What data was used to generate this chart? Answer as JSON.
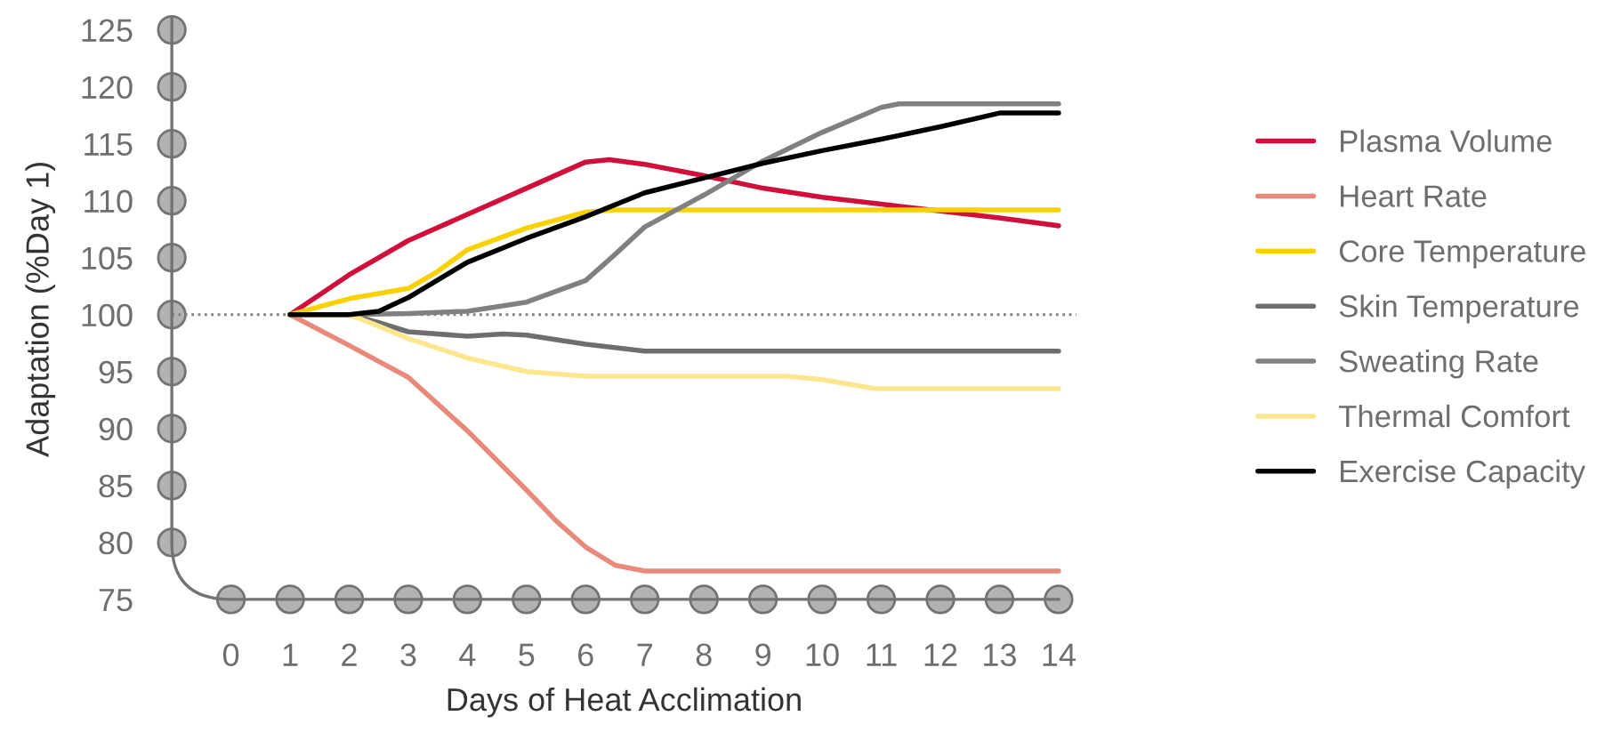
{
  "chart_data": {
    "type": "line",
    "xlabel": "Days of Heat Acclimation",
    "ylabel": "Adaptation (%Day 1)",
    "xlim": [
      -1,
      14.3
    ],
    "ylim": [
      75,
      126
    ],
    "xticks": [
      0,
      1,
      2,
      3,
      4,
      5,
      6,
      7,
      8,
      9,
      10,
      11,
      12,
      13,
      14
    ],
    "yticks": [
      75,
      80,
      85,
      90,
      95,
      100,
      105,
      110,
      115,
      120,
      125
    ],
    "grid": false,
    "legend": "right",
    "marker": "none",
    "line_style": "solid",
    "ref_lines": [
      {
        "axis": "y",
        "value": 100,
        "line_style": "dotted",
        "color": "#808080"
      }
    ],
    "series": [
      {
        "name": "Plasma Volume",
        "color": "#d0103a",
        "x": [
          1,
          2,
          3,
          4,
          5,
          6,
          6.4,
          7,
          8,
          9,
          10,
          11,
          12,
          13,
          14
        ],
        "values": [
          100,
          103.5,
          106.5,
          108.8,
          111.1,
          113.4,
          113.6,
          113.2,
          112.2,
          111.1,
          110.3,
          109.7,
          109.1,
          108.5,
          107.8
        ]
      },
      {
        "name": "Heart Rate",
        "color": "#e8897a",
        "x": [
          1,
          2,
          3,
          4,
          5,
          5.5,
          6,
          6.5,
          7,
          14
        ],
        "values": [
          100,
          97.3,
          94.5,
          89.8,
          84.6,
          81.9,
          79.6,
          78.0,
          77.5,
          77.5
        ]
      },
      {
        "name": "Core Temperature",
        "color": "#f9d100",
        "x": [
          1,
          2,
          3,
          3.5,
          4,
          5,
          6,
          6.5,
          14
        ],
        "values": [
          100,
          101.4,
          102.3,
          103.8,
          105.7,
          107.6,
          109.0,
          109.2,
          109.2
        ]
      },
      {
        "name": "Skin Temperature",
        "color": "#6d6e70",
        "x": [
          1,
          2,
          2.5,
          3,
          4,
          4.6,
          5,
          6,
          7,
          14
        ],
        "values": [
          100,
          100,
          99.3,
          98.5,
          98.1,
          98.3,
          98.2,
          97.4,
          96.8,
          96.8
        ]
      },
      {
        "name": "Sweating Rate",
        "color": "#808080",
        "x": [
          1,
          2,
          3,
          4,
          5,
          6,
          6.5,
          7,
          8,
          9,
          10,
          11,
          11.3,
          14
        ],
        "values": [
          100,
          100,
          100.1,
          100.3,
          101.1,
          103.0,
          105.3,
          107.7,
          110.5,
          113.5,
          116.0,
          118.2,
          118.5,
          118.5
        ]
      },
      {
        "name": "Thermal Comfort",
        "color": "#fde68e",
        "x": [
          1,
          2,
          2.5,
          3,
          4,
          5,
          6,
          9.4,
          10,
          10.9,
          14
        ],
        "values": [
          100,
          100,
          99.0,
          97.9,
          96.2,
          95.0,
          94.6,
          94.6,
          94.3,
          93.5,
          93.5
        ]
      },
      {
        "name": "Exercise Capacity",
        "color": "#000000",
        "x": [
          1,
          2,
          2.5,
          3,
          4,
          5,
          6,
          7,
          8,
          9,
          10,
          11,
          12,
          13,
          14
        ],
        "values": [
          100,
          100,
          100.3,
          101.5,
          104.6,
          106.7,
          108.6,
          110.7,
          112.0,
          113.3,
          114.4,
          115.4,
          116.5,
          117.7,
          117.7
        ]
      }
    ]
  }
}
